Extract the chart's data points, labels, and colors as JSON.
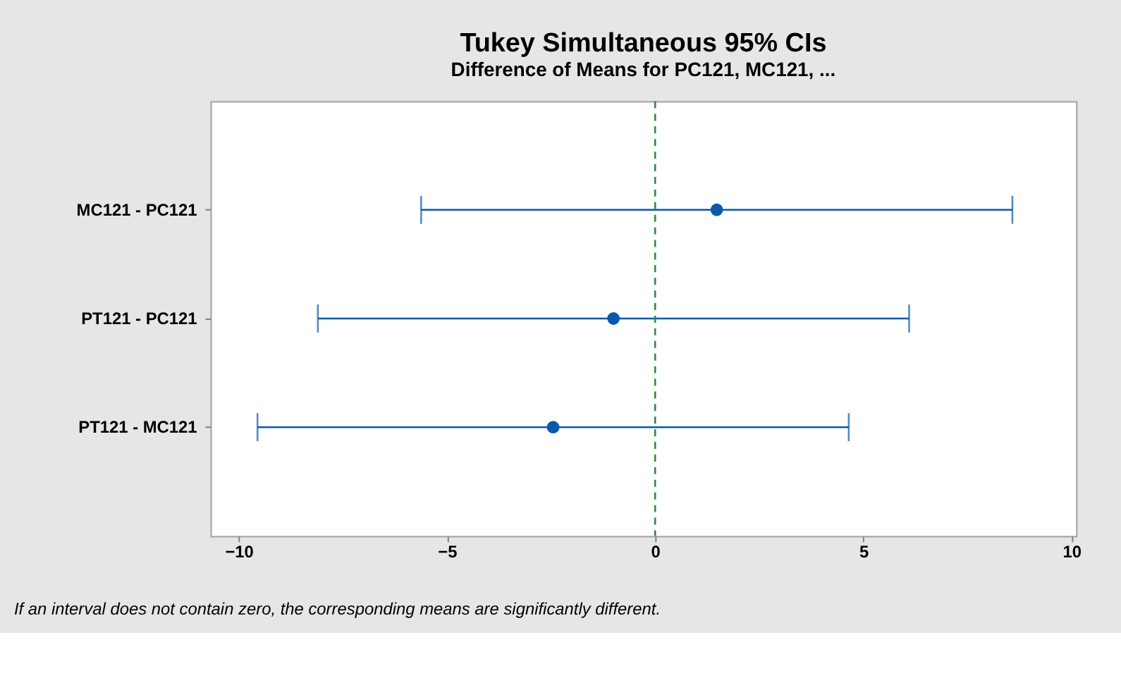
{
  "chart_data": {
    "type": "scatter",
    "orientation": "horizontal",
    "title": "Tukey Simultaneous 95% CIs",
    "subtitle": "Difference of Means for PC121, MC121, ...",
    "categories": [
      "MC121 - PC121",
      "PT121 - PC121",
      "PT121 - MC121"
    ],
    "series": [
      {
        "color": "#0a5aab",
        "values": [
          1.48,
          -1.0,
          -2.45
        ],
        "errors": [
          7.1,
          7.1,
          7.1
        ]
      }
    ],
    "xlim": [
      -10.68,
      10.11
    ],
    "xticks": [
      -10,
      -5,
      0,
      5,
      10
    ],
    "ref_lines": [
      {
        "axis": "x",
        "value": 0,
        "color": "#2e8b3a",
        "line_style": "dashed"
      }
    ],
    "annotations": [
      "If an interval does not contain zero, the corresponding means are significantly different."
    ],
    "grid": false,
    "marker": "circle"
  }
}
